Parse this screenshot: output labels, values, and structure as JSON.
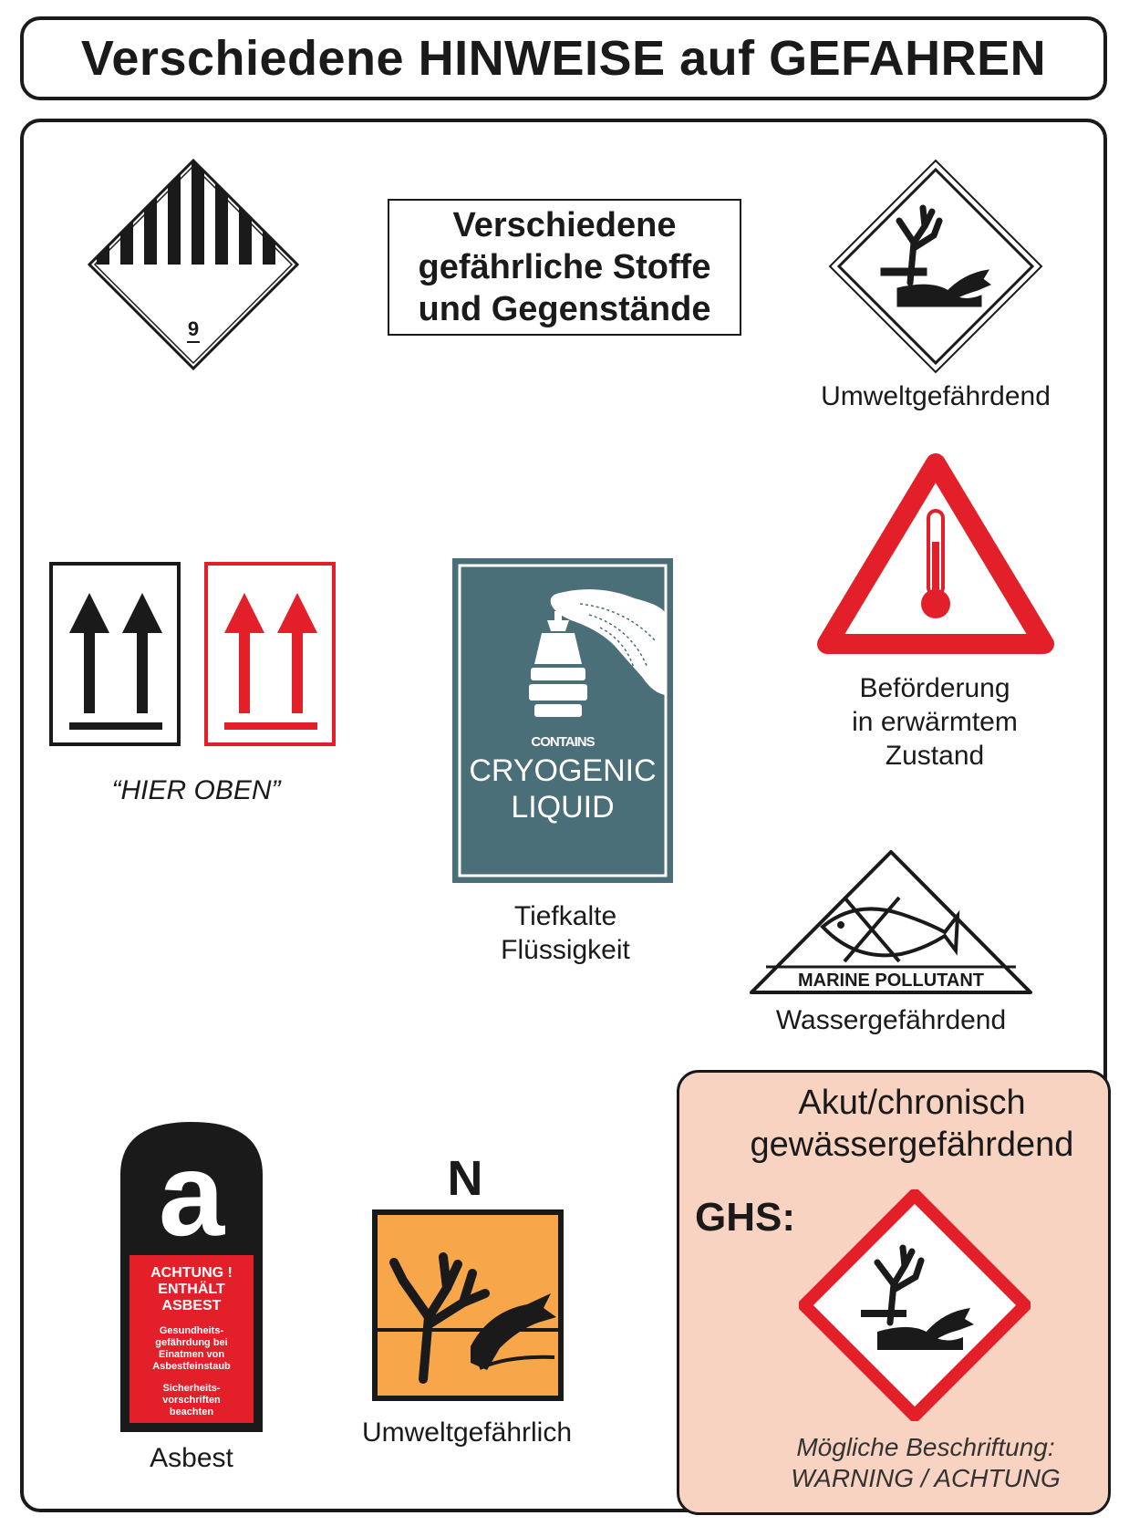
{
  "header": {
    "title": "Verschiedene HINWEISE auf GEFAHREN"
  },
  "class9": {
    "number": "9",
    "text_lines": [
      "Verschiedene",
      "gefährliche Stoffe",
      "und Gegenstände"
    ]
  },
  "environment_label": {
    "caption": "Umweltgefährdend"
  },
  "heat_label": {
    "caption_lines": [
      "Beförderung",
      "in erwärmtem",
      "Zustand"
    ]
  },
  "orientation_label": {
    "caption": "“HIER OBEN”"
  },
  "cryogenic_label": {
    "contains": "CONTAINS",
    "line1": "CRYOGENIC",
    "line2": "LIQUID",
    "caption_lines": [
      "Tiefkalte",
      "Flüssigkeit"
    ]
  },
  "marine_label": {
    "text": "MARINE POLLUTANT",
    "caption": "Wassergefährdend"
  },
  "asbestos_label": {
    "letter": "a",
    "warning_lines": [
      "ACHTUNG !",
      "ENTHÄLT",
      "ASBEST"
    ],
    "health_lines": [
      "Gesundheits-",
      "gefährdung bei",
      "Einatmen von",
      "Asbestfeinstaub"
    ],
    "safety_lines": [
      "Sicherheits-",
      "vorschriften",
      "beachten"
    ],
    "caption": "Asbest"
  },
  "n_label": {
    "letter": "N",
    "caption": "Umweltgefährlich"
  },
  "ghs_panel": {
    "heading_lines": [
      "Akut/chronisch",
      "gewässergefährdend"
    ],
    "ghs": "GHS:",
    "note_lines": [
      "Mögliche Beschriftung:",
      "WARNING / ACHTUNG"
    ]
  },
  "colors": {
    "black": "#1a1a1a",
    "red": "#e3202a",
    "teal": "#4b6f78",
    "orange": "#f7a64a",
    "panel": "#f9d3c1"
  },
  "icons": [
    "class-9-diamond-icon",
    "environment-diamond-icon",
    "thermometer-triangle-icon",
    "this-way-up-icon",
    "cryogenic-label-icon",
    "marine-pollutant-icon",
    "asbestos-label-icon",
    "n-environment-icon",
    "ghs09-pictogram-icon"
  ]
}
